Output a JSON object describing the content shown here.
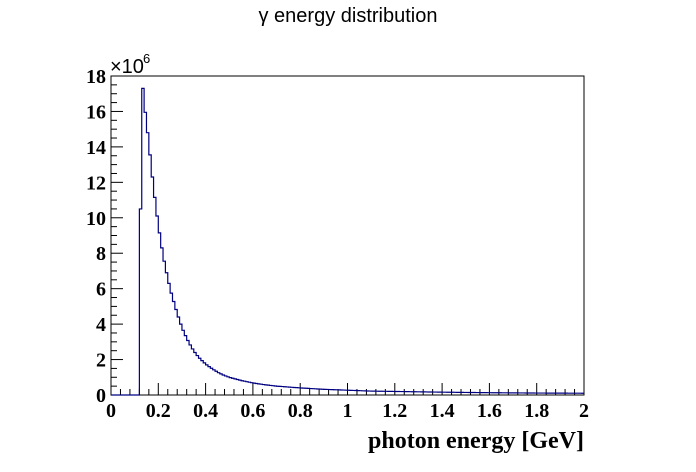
{
  "chart_data": {
    "type": "histogram",
    "title": "γ energy distribution",
    "xlabel": "photon energy [GeV]",
    "ylabel": "",
    "xlim": [
      0,
      2
    ],
    "ylim": [
      0,
      18
    ],
    "y_multiplier_label": "×10",
    "y_multiplier_exponent": "6",
    "x_ticks": [
      "0",
      "0.2",
      "0.4",
      "0.6",
      "0.8",
      "1",
      "1.2",
      "1.4",
      "1.6",
      "1.8",
      "2"
    ],
    "y_ticks": [
      "0",
      "2",
      "4",
      "6",
      "8",
      "10",
      "12",
      "14",
      "16",
      "18"
    ],
    "grid": false,
    "legend": false,
    "series": [
      {
        "line_color": "#000080",
        "x": [
          0.12,
          0.125,
          0.13,
          0.135,
          0.14,
          0.15,
          0.16,
          0.17,
          0.18,
          0.19,
          0.2,
          0.21,
          0.22,
          0.23,
          0.24,
          0.25,
          0.26,
          0.28,
          0.3,
          0.32,
          0.34,
          0.36,
          0.38,
          0.4,
          0.42,
          0.44,
          0.46,
          0.48,
          0.5,
          0.55,
          0.6,
          0.65,
          0.7,
          0.8,
          0.9,
          1.0,
          1.1,
          1.2,
          1.4,
          1.6,
          1.8,
          2.0
        ],
        "y": [
          0.4,
          10.5,
          17.2,
          17.3,
          16.5,
          15.4,
          14.2,
          12.9,
          11.7,
          10.6,
          9.6,
          8.7,
          7.9,
          7.2,
          6.6,
          6.0,
          5.5,
          4.6,
          3.8,
          3.2,
          2.7,
          2.3,
          2.0,
          1.75,
          1.55,
          1.38,
          1.22,
          1.1,
          1.0,
          0.82,
          0.68,
          0.58,
          0.5,
          0.4,
          0.32,
          0.27,
          0.22,
          0.2,
          0.16,
          0.13,
          0.11,
          0.1
        ]
      }
    ]
  }
}
